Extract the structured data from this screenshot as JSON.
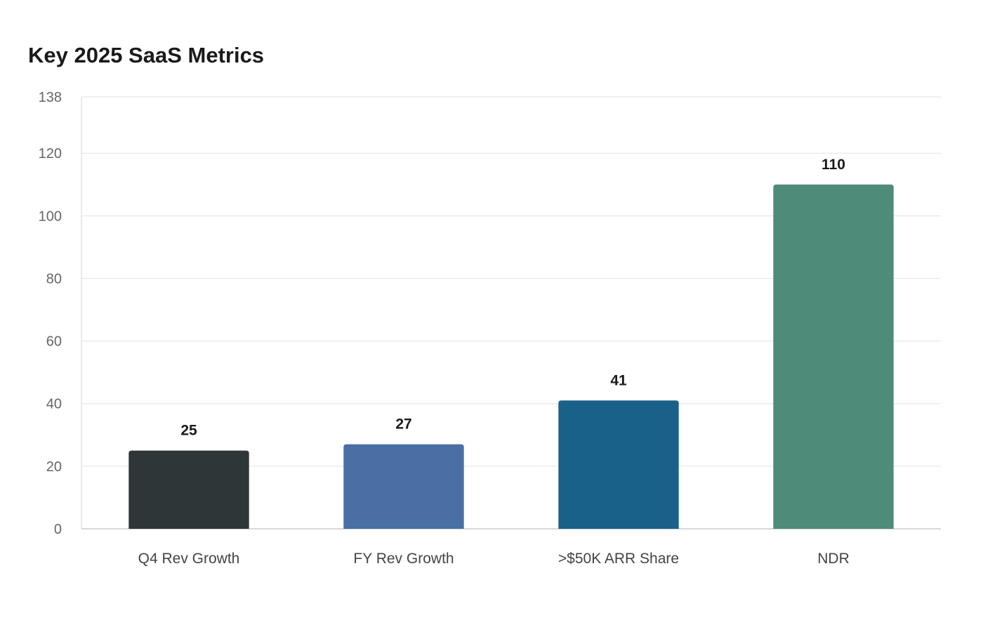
{
  "chart_data": {
    "type": "bar",
    "title": "Key 2025 SaaS Metrics",
    "categories": [
      "Q4 Rev Growth",
      "FY Rev Growth",
      ">$50K ARR Share",
      "NDR"
    ],
    "values": [
      25,
      27,
      41,
      110
    ],
    "data_labels": [
      "25",
      "27",
      "41",
      "110"
    ],
    "colors": [
      "#2e3638",
      "#4a6fa5",
      "#196188",
      "#4e8b79"
    ],
    "xlabel": "",
    "ylabel": "",
    "ylim": [
      0,
      138
    ],
    "yticks": [
      0,
      20,
      40,
      60,
      80,
      100,
      120,
      138
    ],
    "grid": true,
    "legend": "none"
  }
}
